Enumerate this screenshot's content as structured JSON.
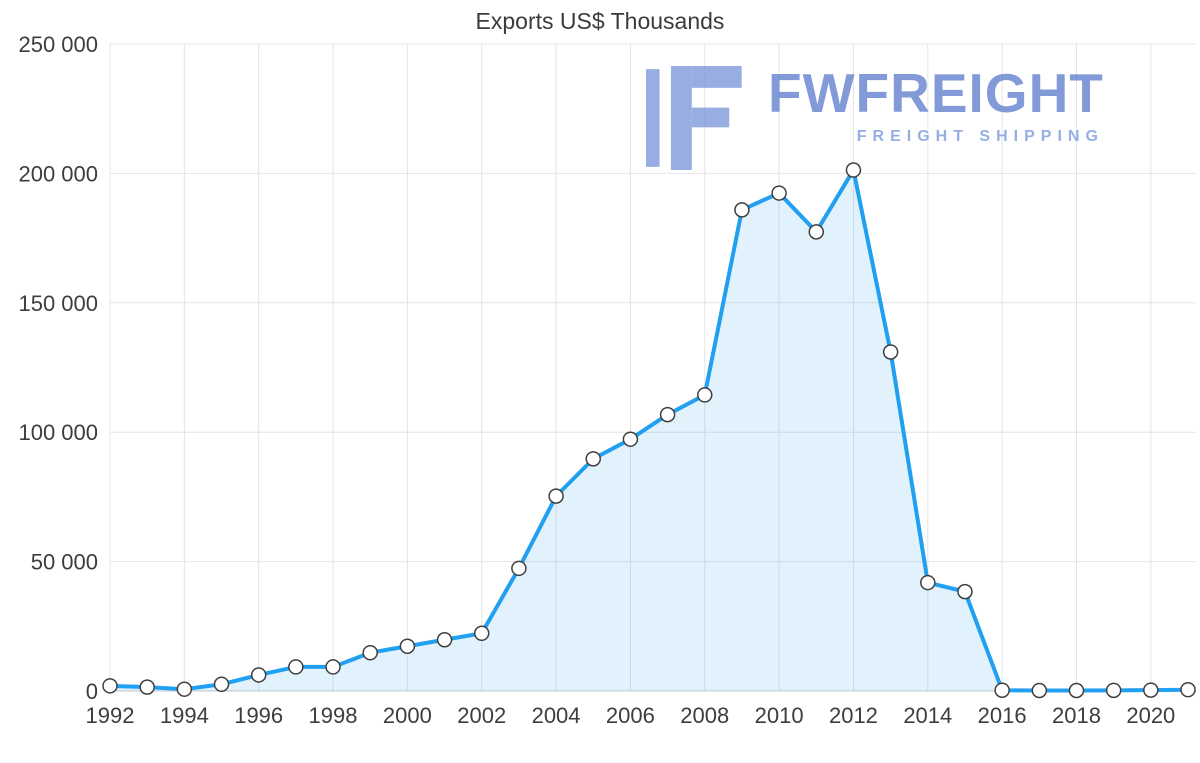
{
  "chart": {
    "title": "Exports US$ Thousands"
  },
  "watermark": {
    "name": "FWFREIGHT",
    "subtitle": "FREIGHT SHIPPING"
  },
  "theme": {
    "line": "#219ff0",
    "fill": "rgba(33,155,240,0.13)",
    "marker_fill": "#ffffff",
    "marker_stroke": "#3f3f3f",
    "grid": "#e4e4e4",
    "axis_line": "#c9c9c9",
    "text": "#3d3d3d",
    "watermark_mark": "rgba(112,142,214,0.72)"
  },
  "chart_data": {
    "type": "area",
    "title": "Exports US$ Thousands",
    "xlabel": "",
    "ylabel": "",
    "x": [
      1992,
      1993,
      1994,
      1995,
      1996,
      1997,
      1998,
      1999,
      2000,
      2001,
      2002,
      2003,
      2004,
      2005,
      2006,
      2007,
      2008,
      2009,
      2010,
      2011,
      2012,
      2013,
      2014,
      2015,
      2016,
      2017,
      2018,
      2019,
      2020,
      2021
    ],
    "values": [
      2000,
      1500,
      700,
      2600,
      6200,
      9300,
      9300,
      14800,
      17300,
      19800,
      22300,
      47400,
      75300,
      89700,
      97300,
      106800,
      114400,
      185900,
      192400,
      177400,
      201300,
      131000,
      41900,
      38400,
      300,
      200,
      200,
      250,
      350,
      500
    ],
    "ylim": [
      0,
      250000
    ],
    "xlim": [
      1992,
      2021
    ],
    "yticks": [
      0,
      50000,
      100000,
      150000,
      200000,
      250000
    ],
    "ytick_labels": [
      "0",
      "50 000",
      "100 000",
      "150 000",
      "200 000",
      "250 000"
    ],
    "xticks": [
      1992,
      1994,
      1996,
      1998,
      2000,
      2002,
      2004,
      2006,
      2008,
      2010,
      2012,
      2014,
      2016,
      2018,
      2020
    ],
    "xtick_labels": [
      "1992",
      "1994",
      "1996",
      "1998",
      "2000",
      "2002",
      "2004",
      "2006",
      "2008",
      "2010",
      "2012",
      "2014",
      "2016",
      "2018",
      "2020"
    ],
    "grid": true,
    "legend": false
  }
}
